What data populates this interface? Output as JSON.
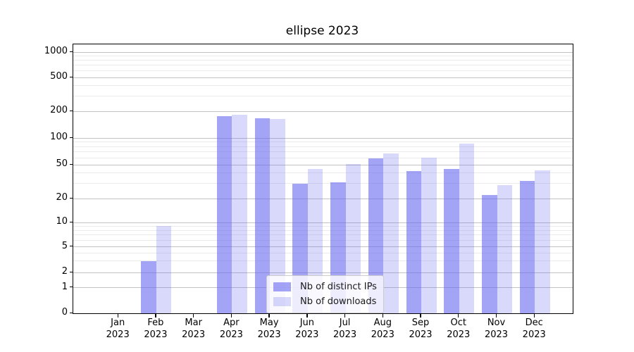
{
  "title": "ellipse 2023",
  "colors": {
    "bar_dark": "rgba(103,103,240,0.6)",
    "bar_light": "rgba(103,103,240,0.25)",
    "grid_major": "#c2c2c2",
    "grid_minor": "#ebebeb",
    "axis_line": "#000000",
    "tick_text": "#000000"
  },
  "y_axis": {
    "tick_values": [
      0,
      1,
      2,
      5,
      10,
      20,
      50,
      100,
      200,
      500,
      1000
    ],
    "tick_labels": [
      "0",
      "1",
      "2",
      "5",
      "10",
      "20",
      "50",
      "100",
      "200",
      "500",
      "1000"
    ]
  },
  "x_axis": {
    "months": [
      "Jan",
      "Feb",
      "Mar",
      "Apr",
      "May",
      "Jun",
      "Jul",
      "Aug",
      "Sep",
      "Oct",
      "Nov",
      "Dec"
    ],
    "year": "2023"
  },
  "chart_data": {
    "type": "bar",
    "title": "ellipse 2023",
    "yscale": "symlog",
    "ylim": [
      0,
      1200
    ],
    "grid": true,
    "legend_position": "lower center",
    "y_ticks": [
      0,
      1,
      2,
      5,
      10,
      20,
      50,
      100,
      200,
      500,
      1000
    ],
    "categories": [
      "Jan 2023",
      "Feb 2023",
      "Mar 2023",
      "Apr 2023",
      "May 2023",
      "Jun 2023",
      "Jul 2023",
      "Aug 2023",
      "Sep 2023",
      "Oct 2023",
      "Nov 2023",
      "Dec 2023"
    ],
    "series": [
      {
        "name": "Nb of distinct IPs",
        "values": [
          0,
          3,
          0,
          176,
          166,
          30,
          31,
          59,
          42,
          45,
          22,
          32
        ]
      },
      {
        "name": "Nb of downloads",
        "values": [
          0,
          9,
          0,
          184,
          164,
          45,
          51,
          67,
          60,
          86,
          29,
          43
        ]
      }
    ]
  }
}
